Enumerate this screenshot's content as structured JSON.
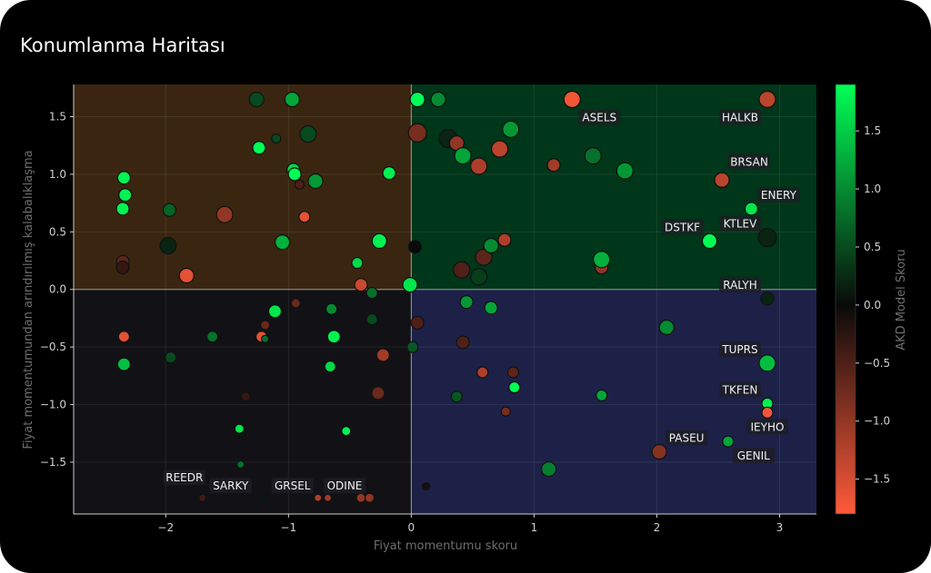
{
  "title": "Konumlanma Haritası",
  "chart_data": {
    "type": "scatter",
    "xlabel": "Fiyat momentumu skoru",
    "ylabel": "Fiyat momentumundan arındırılmış kalabalıklaşma",
    "xlim": [
      -2.75,
      3.3
    ],
    "ylim": [
      -1.95,
      1.78
    ],
    "xticks": [
      -2,
      -1,
      0,
      1,
      2,
      3
    ],
    "yticks": [
      -1.5,
      -1.0,
      -0.5,
      0.0,
      0.5,
      1.0,
      1.5
    ],
    "grid": true,
    "quadrant_colors": {
      "top_left": "#3a2610",
      "top_right": "#00361a",
      "bottom_left": "#121216",
      "bottom_right": "#1d2148"
    },
    "colorbar": {
      "label": "AKD Model Skoru",
      "range": [
        -1.8,
        1.9
      ],
      "ticks": [
        -1.5,
        -1.0,
        -0.5,
        0.0,
        0.5,
        1.0,
        1.5
      ],
      "colors": [
        "#ff5a3a",
        "#0a0a0a",
        "#00ff55"
      ]
    },
    "points": [
      {
        "x": 1.31,
        "y": 1.65,
        "c": -1.7,
        "s": 9,
        "label": "ASELS"
      },
      {
        "x": 2.9,
        "y": 1.65,
        "c": -1.3,
        "s": 9,
        "label": "HALKB"
      },
      {
        "x": 2.53,
        "y": 0.95,
        "c": -1.3,
        "s": 8,
        "label": "BRSAN"
      },
      {
        "x": 2.77,
        "y": 0.7,
        "c": 1.7,
        "s": 7,
        "label": "ENERY"
      },
      {
        "x": 2.43,
        "y": 0.42,
        "c": 1.9,
        "s": 8,
        "label": "DSTKF"
      },
      {
        "x": 2.9,
        "y": 0.45,
        "c": 0.2,
        "s": 10,
        "label": "KTLEV"
      },
      {
        "x": 2.9,
        "y": -0.08,
        "c": 0.2,
        "s": 7,
        "label": "RALYH"
      },
      {
        "x": 2.9,
        "y": -0.64,
        "c": 1.4,
        "s": 9,
        "label": "TUPRS"
      },
      {
        "x": 2.9,
        "y": -0.99,
        "c": 1.8,
        "s": 6,
        "label": "TKFEN"
      },
      {
        "x": 2.9,
        "y": -1.07,
        "c": -1.7,
        "s": 6,
        "label": "IEYHO"
      },
      {
        "x": 2.02,
        "y": -1.41,
        "c": -0.9,
        "s": 8,
        "label": "PASEU"
      },
      {
        "x": 2.58,
        "y": -1.32,
        "c": 1.2,
        "s": 6,
        "label": "GENIL"
      },
      {
        "x": -1.7,
        "y": -1.81,
        "c": -0.4,
        "s": 4,
        "label": "REEDR"
      },
      {
        "x": -1.19,
        "y": -1.81,
        "c": 0.1,
        "s": 4,
        "label": "SARKY"
      },
      {
        "x": -0.76,
        "y": -1.81,
        "c": -1.2,
        "s": 4,
        "label": "GRSEL"
      },
      {
        "x": -0.41,
        "y": -1.81,
        "c": -1.0,
        "s": 5,
        "label": "ODINE"
      },
      {
        "x": -0.68,
        "y": -1.81,
        "c": -1.1,
        "s": 4
      },
      {
        "x": -0.34,
        "y": -1.81,
        "c": -1.0,
        "s": 5
      },
      {
        "x": 0.12,
        "y": -1.71,
        "c": -0.1,
        "s": 4
      },
      {
        "x": 0.05,
        "y": 1.65,
        "c": 1.9,
        "s": 8
      },
      {
        "x": 0.22,
        "y": 1.65,
        "c": 1.0,
        "s": 8
      },
      {
        "x": 0.05,
        "y": 1.36,
        "c": -0.8,
        "s": 10
      },
      {
        "x": 0.3,
        "y": 1.31,
        "c": 0.2,
        "s": 10
      },
      {
        "x": 0.37,
        "y": 1.27,
        "c": -1.0,
        "s": 8
      },
      {
        "x": 0.42,
        "y": 1.16,
        "c": 1.2,
        "s": 9
      },
      {
        "x": 0.55,
        "y": 1.07,
        "c": -1.2,
        "s": 9
      },
      {
        "x": 0.72,
        "y": 1.22,
        "c": -1.3,
        "s": 9
      },
      {
        "x": 0.81,
        "y": 1.39,
        "c": 1.1,
        "s": 9
      },
      {
        "x": 1.16,
        "y": 1.08,
        "c": -1.1,
        "s": 7
      },
      {
        "x": 1.48,
        "y": 1.16,
        "c": 0.8,
        "s": 9
      },
      {
        "x": 1.74,
        "y": 1.03,
        "c": 1.1,
        "s": 9
      },
      {
        "x": 0.03,
        "y": 0.37,
        "c": 0.0,
        "s": 7
      },
      {
        "x": 0.41,
        "y": 0.17,
        "c": -0.5,
        "s": 9
      },
      {
        "x": 0.55,
        "y": 0.11,
        "c": 0.4,
        "s": 9
      },
      {
        "x": 0.59,
        "y": 0.28,
        "c": -0.6,
        "s": 9
      },
      {
        "x": 0.65,
        "y": 0.38,
        "c": 1.0,
        "s": 8
      },
      {
        "x": 0.76,
        "y": 0.43,
        "c": -1.2,
        "s": 7
      },
      {
        "x": 1.55,
        "y": 0.19,
        "c": -1.0,
        "s": 7
      },
      {
        "x": 1.55,
        "y": 0.26,
        "c": 1.3,
        "s": 9
      },
      {
        "x": -1.26,
        "y": 1.65,
        "c": 0.5,
        "s": 8
      },
      {
        "x": -0.97,
        "y": 1.65,
        "c": 1.2,
        "s": 8
      },
      {
        "x": -1.1,
        "y": 1.31,
        "c": 0.5,
        "s": 5
      },
      {
        "x": -0.84,
        "y": 1.35,
        "c": 0.5,
        "s": 9
      },
      {
        "x": -1.24,
        "y": 1.23,
        "c": 1.9,
        "s": 7
      },
      {
        "x": -0.96,
        "y": 1.04,
        "c": 1.6,
        "s": 7
      },
      {
        "x": -0.95,
        "y": 1.0,
        "c": 1.9,
        "s": 7
      },
      {
        "x": -0.91,
        "y": 0.91,
        "c": -0.5,
        "s": 5
      },
      {
        "x": -0.78,
        "y": 0.94,
        "c": 1.1,
        "s": 8
      },
      {
        "x": -0.18,
        "y": 1.01,
        "c": 1.8,
        "s": 7
      },
      {
        "x": -2.34,
        "y": 0.97,
        "c": 1.8,
        "s": 7
      },
      {
        "x": -2.33,
        "y": 0.82,
        "c": 1.8,
        "s": 7
      },
      {
        "x": -2.35,
        "y": 0.7,
        "c": 1.8,
        "s": 7
      },
      {
        "x": -1.97,
        "y": 0.69,
        "c": 0.7,
        "s": 7
      },
      {
        "x": -1.98,
        "y": 0.38,
        "c": 0.2,
        "s": 9
      },
      {
        "x": -1.52,
        "y": 0.65,
        "c": -1.0,
        "s": 9
      },
      {
        "x": -0.87,
        "y": 0.63,
        "c": -1.6,
        "s": 6
      },
      {
        "x": -1.05,
        "y": 0.41,
        "c": 1.3,
        "s": 8
      },
      {
        "x": -0.26,
        "y": 0.42,
        "c": 1.8,
        "s": 8
      },
      {
        "x": -2.35,
        "y": 0.24,
        "c": -0.6,
        "s": 7
      },
      {
        "x": -2.35,
        "y": 0.19,
        "c": -0.3,
        "s": 7
      },
      {
        "x": -1.83,
        "y": 0.12,
        "c": -1.6,
        "s": 8
      },
      {
        "x": -0.44,
        "y": 0.23,
        "c": 1.6,
        "s": 6
      },
      {
        "x": -0.41,
        "y": 0.04,
        "c": -1.4,
        "s": 7
      },
      {
        "x": -0.32,
        "y": -0.03,
        "c": 0.8,
        "s": 6
      },
      {
        "x": -0.01,
        "y": 0.04,
        "c": 1.7,
        "s": 8
      },
      {
        "x": -1.11,
        "y": -0.19,
        "c": 1.7,
        "s": 7
      },
      {
        "x": -0.94,
        "y": -0.12,
        "c": -0.7,
        "s": 5
      },
      {
        "x": -0.65,
        "y": -0.17,
        "c": 1.0,
        "s": 6
      },
      {
        "x": -1.19,
        "y": -0.31,
        "c": -0.7,
        "s": 5
      },
      {
        "x": -1.62,
        "y": -0.41,
        "c": 0.8,
        "s": 6
      },
      {
        "x": -2.34,
        "y": -0.41,
        "c": -1.6,
        "s": 6
      },
      {
        "x": -1.22,
        "y": -0.41,
        "c": -1.6,
        "s": 6
      },
      {
        "x": -1.19,
        "y": -0.43,
        "c": 0.8,
        "s": 4
      },
      {
        "x": -0.63,
        "y": -0.41,
        "c": 1.8,
        "s": 7
      },
      {
        "x": -0.32,
        "y": -0.26,
        "c": 0.5,
        "s": 6
      },
      {
        "x": 0.05,
        "y": -0.29,
        "c": -0.5,
        "s": 7
      },
      {
        "x": 0.45,
        "y": -0.11,
        "c": 1.1,
        "s": 7
      },
      {
        "x": 0.65,
        "y": -0.16,
        "c": 1.2,
        "s": 7
      },
      {
        "x": 0.42,
        "y": -0.46,
        "c": -0.5,
        "s": 7
      },
      {
        "x": 0.01,
        "y": -0.5,
        "c": 0.6,
        "s": 6
      },
      {
        "x": -2.34,
        "y": -0.65,
        "c": 1.4,
        "s": 7
      },
      {
        "x": -1.96,
        "y": -0.59,
        "c": 0.5,
        "s": 6
      },
      {
        "x": -0.66,
        "y": -0.67,
        "c": 1.6,
        "s": 6
      },
      {
        "x": -0.23,
        "y": -0.57,
        "c": -1.1,
        "s": 7
      },
      {
        "x": 0.58,
        "y": -0.72,
        "c": -1.2,
        "s": 6
      },
      {
        "x": 0.83,
        "y": -0.72,
        "c": -0.6,
        "s": 6
      },
      {
        "x": 0.84,
        "y": -0.85,
        "c": 1.9,
        "s": 6
      },
      {
        "x": 1.55,
        "y": -0.92,
        "c": 1.2,
        "s": 6
      },
      {
        "x": 0.37,
        "y": -0.93,
        "c": 0.6,
        "s": 6
      },
      {
        "x": -0.27,
        "y": -0.9,
        "c": -0.7,
        "s": 7
      },
      {
        "x": -1.35,
        "y": -0.93,
        "c": -0.3,
        "s": 5
      },
      {
        "x": 0.77,
        "y": -1.06,
        "c": -0.8,
        "s": 5
      },
      {
        "x": -1.4,
        "y": -1.21,
        "c": 1.7,
        "s": 5
      },
      {
        "x": -0.53,
        "y": -1.23,
        "c": 1.8,
        "s": 5
      },
      {
        "x": -1.39,
        "y": -1.52,
        "c": 0.8,
        "s": 4
      },
      {
        "x": 1.12,
        "y": -1.56,
        "c": 0.9,
        "s": 8
      },
      {
        "x": 2.08,
        "y": -0.33,
        "c": 1.0,
        "s": 8
      }
    ]
  }
}
